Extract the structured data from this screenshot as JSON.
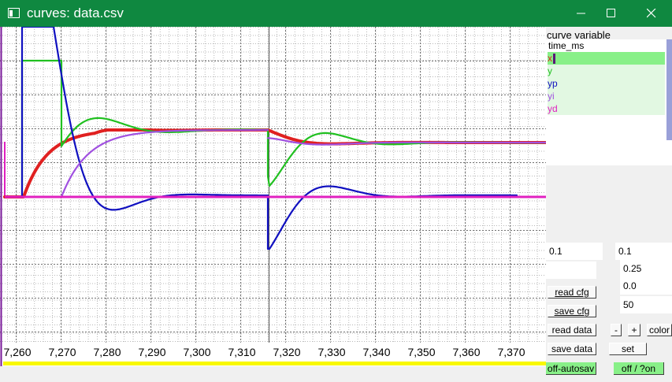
{
  "window": {
    "title": "curves: data.csv",
    "colors": {
      "titlebar": "#0f8840",
      "plot_bg": "#ffffff"
    }
  },
  "plot": {
    "x_ticks": [
      "7,260",
      "7,270",
      "7,280",
      "7,290",
      "7,300",
      "7,310",
      "7,320",
      "7,330",
      "7,340",
      "7,350",
      "7,360",
      "7,370"
    ]
  },
  "sidebar": {
    "curve_variable_label": "curve variable",
    "variables": [
      {
        "label": "time_ms",
        "color": "#000000",
        "selected": false
      },
      {
        "label": "x",
        "color": "#e02020",
        "selected": true
      },
      {
        "label": "y",
        "color": "#20c020",
        "selected": false
      },
      {
        "label": "yp",
        "color": "#1010c0",
        "selected": false
      },
      {
        "label": "yi",
        "color": "#a050e0",
        "selected": false
      },
      {
        "label": "yd",
        "color": "#e020c0",
        "selected": false
      }
    ],
    "field_a": "0.1",
    "field_b": "0.1",
    "value_1": "0.25",
    "value_2": "0.0",
    "value_3": "50",
    "buttons": {
      "read_cfg": "read cfg",
      "save_cfg": "save cfg",
      "read_data": "read data",
      "minus": "-",
      "plus": "+",
      "color": "color",
      "save_data": "save data",
      "set": "set",
      "autosave": "off-autosav",
      "off_on": "off / ?on"
    }
  }
}
